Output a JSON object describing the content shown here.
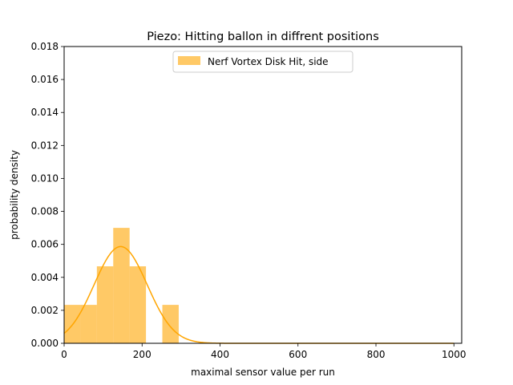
{
  "chart_data": {
    "type": "bar",
    "title": "Piezo: Hitting ballon in diffrent positions",
    "xlabel": "maximal sensor value per run",
    "ylabel": "probability density",
    "xlim": [
      0,
      1020
    ],
    "ylim": [
      0,
      0.018
    ],
    "x_ticks": [
      "0",
      "200",
      "400",
      "600",
      "800",
      "1000"
    ],
    "y_ticks": [
      "0.000",
      "0.002",
      "0.004",
      "0.006",
      "0.008",
      "0.010",
      "0.012",
      "0.014",
      "0.016",
      "0.018"
    ],
    "grid": false,
    "legend_position": "top-center",
    "series": [
      {
        "name": "Nerf Vortex Disk Hit, side",
        "kind": "histogram",
        "color": "#ffa500",
        "bins": [
          {
            "start": 0,
            "end": 42,
            "density": 0.00233
          },
          {
            "start": 42,
            "end": 84,
            "density": 0.00233
          },
          {
            "start": 84,
            "end": 126,
            "density": 0.00467
          },
          {
            "start": 126,
            "end": 168,
            "density": 0.007
          },
          {
            "start": 168,
            "end": 210,
            "density": 0.00467
          },
          {
            "start": 210,
            "end": 252,
            "density": 0.0
          },
          {
            "start": 252,
            "end": 294,
            "density": 0.00233
          }
        ]
      },
      {
        "kind": "density-curve",
        "color": "#ffa500",
        "mean": 145,
        "std": 68,
        "x_range": [
          0,
          1000
        ]
      }
    ]
  }
}
